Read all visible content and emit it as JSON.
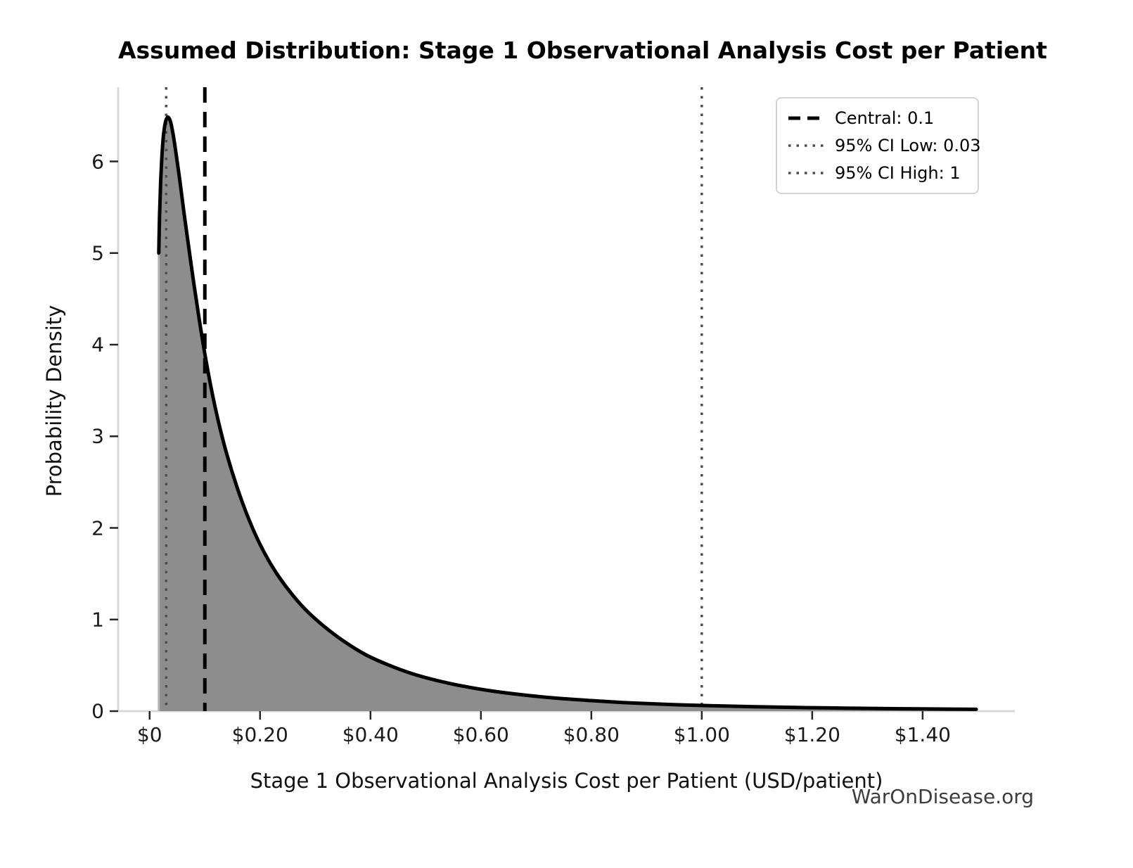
{
  "title": "Assumed Distribution: Stage 1 Observational Analysis Cost per Patient",
  "watermark": "WarOnDisease.org",
  "chart_data": {
    "type": "area",
    "title": "Assumed Distribution: Stage 1 Observational Analysis Cost per Patient",
    "xlabel": "Stage 1 Observational Analysis Cost per Patient (USD/patient)",
    "ylabel": "Probability Density",
    "xlim": [
      -0.057,
      1.567
    ],
    "ylim": [
      0,
      6.81
    ],
    "grid": false,
    "xticks": [
      {
        "value": 0.0,
        "label": "$0"
      },
      {
        "value": 0.2,
        "label": "$0.20"
      },
      {
        "value": 0.4,
        "label": "$0.40"
      },
      {
        "value": 0.6,
        "label": "$0.60"
      },
      {
        "value": 0.8,
        "label": "$0.80"
      },
      {
        "value": 1.0,
        "label": "$1.00"
      },
      {
        "value": 1.2,
        "label": "$1.20"
      },
      {
        "value": 1.4,
        "label": "$1.40"
      }
    ],
    "yticks": [
      {
        "value": 0,
        "label": "0"
      },
      {
        "value": 1,
        "label": "1"
      },
      {
        "value": 2,
        "label": "2"
      },
      {
        "value": 3,
        "label": "3"
      },
      {
        "value": 4,
        "label": "4"
      },
      {
        "value": 5,
        "label": "5"
      },
      {
        "value": 6,
        "label": "6"
      }
    ],
    "reference_lines": [
      {
        "name": "central",
        "x": 0.1,
        "style": "dashed",
        "color": "#000000",
        "label": "Central: 0.1"
      },
      {
        "name": "ci-low",
        "x": 0.03,
        "style": "dotted",
        "color": "#4d4d4d",
        "label": "95% CI Low: 0.03"
      },
      {
        "name": "ci-high",
        "x": 1.0,
        "style": "dotted",
        "color": "#4d4d4d",
        "label": "95% CI High: 1"
      }
    ],
    "legend": {
      "position": "upper right",
      "items": [
        {
          "label": "Central: 0.1",
          "style": "dashed",
          "color": "#000000"
        },
        {
          "label": "95% CI Low: 0.03",
          "style": "dotted",
          "color": "#4d4d4d"
        },
        {
          "label": "95% CI High: 1",
          "style": "dotted",
          "color": "#4d4d4d"
        }
      ]
    },
    "series": [
      {
        "name": "density",
        "color": "#000000",
        "fill_color": "#8d8d8d",
        "edge_color": "#b5b5b5",
        "points": [
          [
            0.0166,
            5.0
          ],
          [
            0.018,
            5.42
          ],
          [
            0.02,
            5.78
          ],
          [
            0.0225,
            6.08
          ],
          [
            0.025,
            6.28
          ],
          [
            0.028,
            6.41
          ],
          [
            0.031,
            6.47
          ],
          [
            0.034,
            6.48
          ],
          [
            0.038,
            6.43
          ],
          [
            0.043,
            6.28
          ],
          [
            0.048,
            6.08
          ],
          [
            0.055,
            5.78
          ],
          [
            0.062,
            5.45
          ],
          [
            0.07,
            5.1
          ],
          [
            0.08,
            4.67
          ],
          [
            0.09,
            4.27
          ],
          [
            0.1,
            3.9
          ],
          [
            0.112,
            3.51
          ],
          [
            0.125,
            3.15
          ],
          [
            0.14,
            2.8
          ],
          [
            0.158,
            2.45
          ],
          [
            0.178,
            2.12
          ],
          [
            0.2,
            1.82
          ],
          [
            0.225,
            1.55
          ],
          [
            0.252,
            1.32
          ],
          [
            0.282,
            1.11
          ],
          [
            0.315,
            0.93
          ],
          [
            0.35,
            0.77
          ],
          [
            0.39,
            0.62
          ],
          [
            0.43,
            0.51
          ],
          [
            0.475,
            0.41
          ],
          [
            0.52,
            0.335
          ],
          [
            0.57,
            0.27
          ],
          [
            0.62,
            0.22
          ],
          [
            0.68,
            0.175
          ],
          [
            0.74,
            0.14
          ],
          [
            0.8,
            0.115
          ],
          [
            0.87,
            0.09
          ],
          [
            0.94,
            0.073
          ],
          [
            1.01,
            0.06
          ],
          [
            1.09,
            0.049
          ],
          [
            1.17,
            0.04
          ],
          [
            1.26,
            0.033
          ],
          [
            1.35,
            0.027
          ],
          [
            1.43,
            0.023
          ],
          [
            1.497,
            0.02
          ]
        ]
      }
    ]
  }
}
